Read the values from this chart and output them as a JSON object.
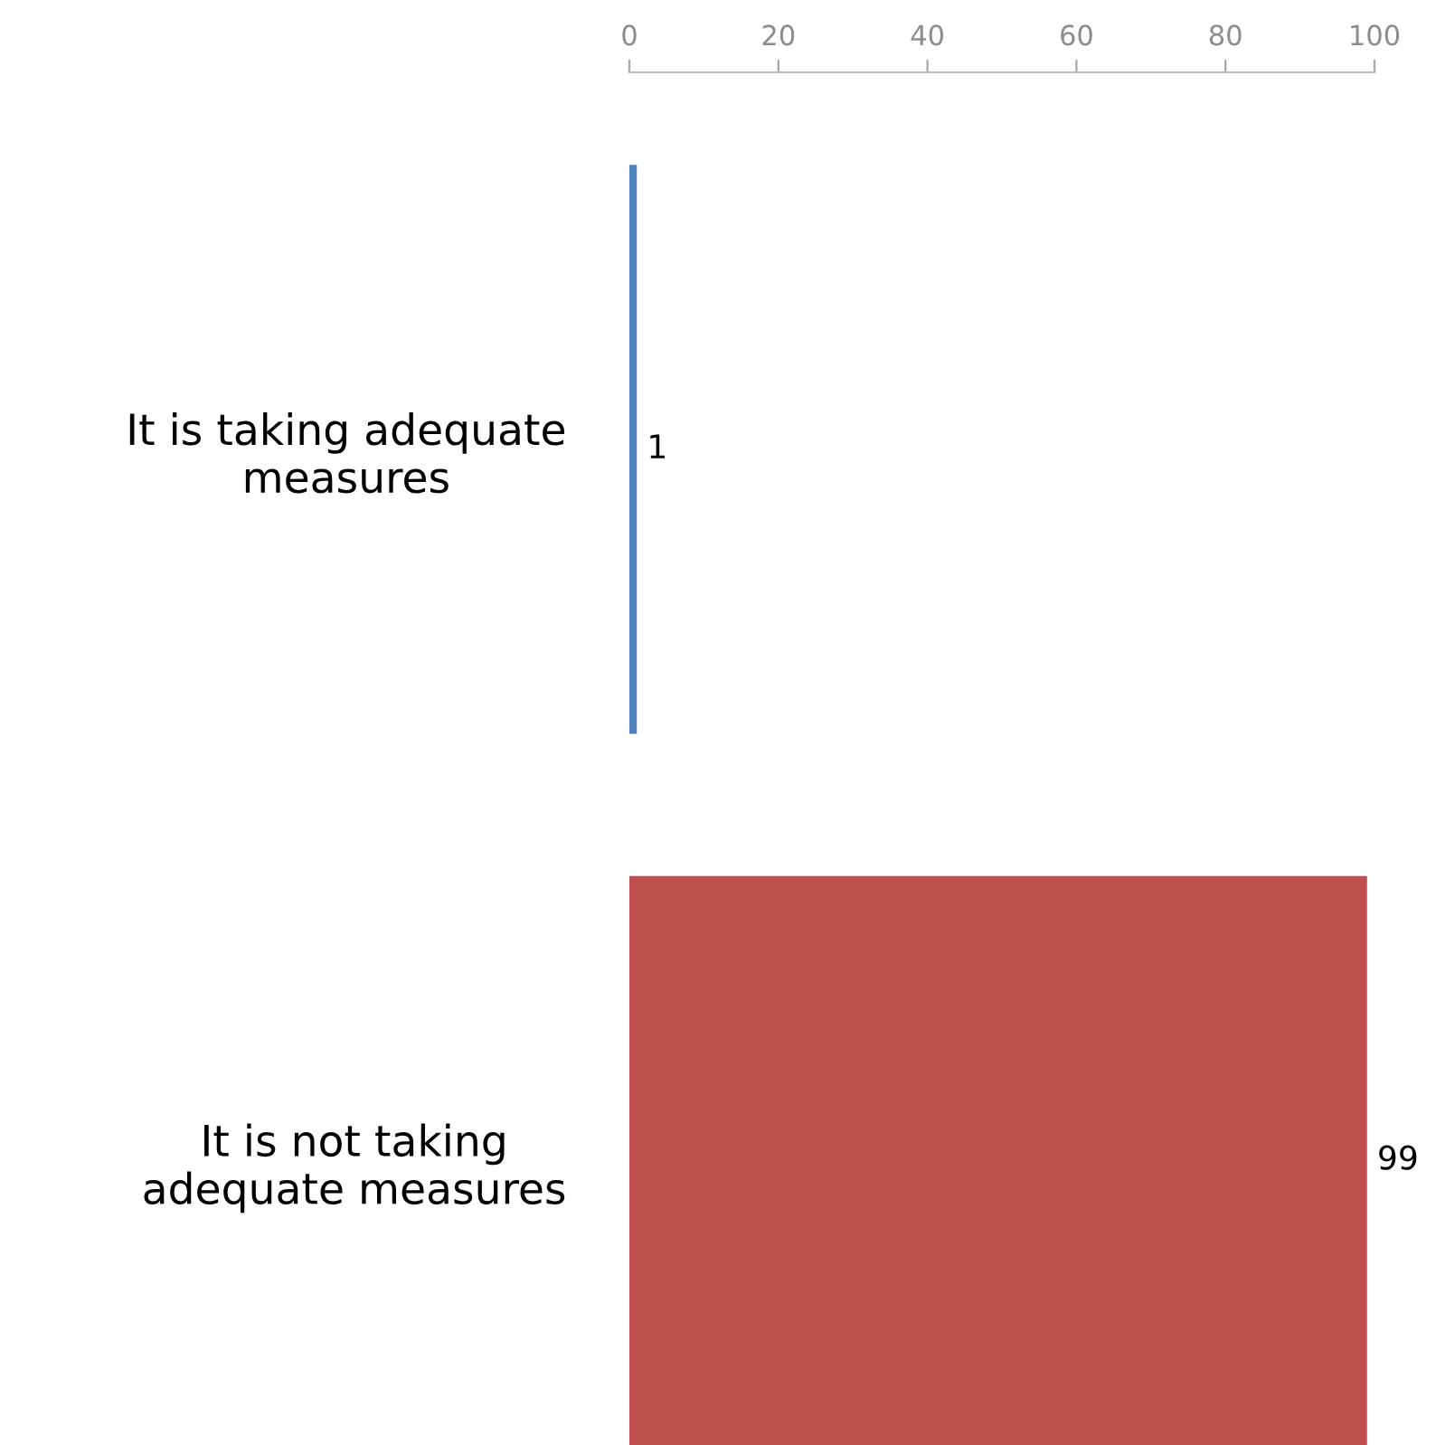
{
  "chart_data": {
    "type": "bar",
    "orientation": "horizontal",
    "categories": [
      "It is taking adequate\nmeasures",
      "It is not taking\nadequate measures"
    ],
    "values": [
      1,
      99
    ],
    "colors": [
      "#4f81bd",
      "#c0504d"
    ],
    "xlim": [
      0,
      100
    ],
    "xticks": [
      0,
      20,
      40,
      60,
      80,
      100
    ],
    "data_labels": true,
    "grid": false,
    "legend": false
  }
}
